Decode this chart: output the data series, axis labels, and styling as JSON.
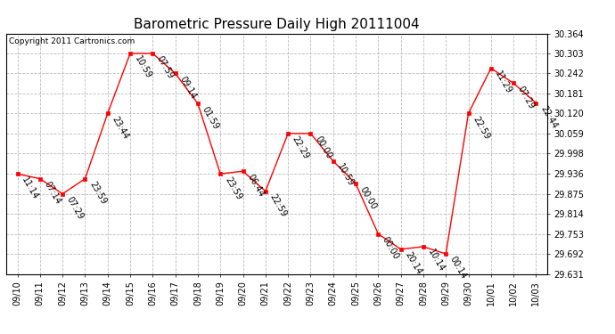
{
  "title": "Barometric Pressure Daily High 20111004",
  "copyright": "Copyright 2011 Cartronics.com",
  "x_labels": [
    "09/10",
    "09/11",
    "09/12",
    "09/13",
    "09/14",
    "09/15",
    "09/16",
    "09/17",
    "09/18",
    "09/19",
    "09/20",
    "09/21",
    "09/22",
    "09/23",
    "09/24",
    "09/25",
    "09/26",
    "09/27",
    "09/28",
    "09/29",
    "09/30",
    "10/01",
    "10/02",
    "10/03"
  ],
  "y_values": [
    29.936,
    29.921,
    29.875,
    29.921,
    30.12,
    30.303,
    30.303,
    30.242,
    30.15,
    29.936,
    29.944,
    29.883,
    30.059,
    30.059,
    29.975,
    29.906,
    29.753,
    29.706,
    29.714,
    29.692,
    30.12,
    30.258,
    30.212,
    30.152
  ],
  "point_labels": [
    "11:14",
    "07:14",
    "07:29",
    "23:59",
    "23:44",
    "10:59",
    "07:59",
    "09:14",
    "01:59",
    "23:59",
    "06:44",
    "22:59",
    "22:29",
    "00:00",
    "10:59",
    "00:00",
    "00:00",
    "20:14",
    "10:14",
    "00:14",
    "22:59",
    "11:29",
    "07:29",
    "22:44"
  ],
  "y_min": 29.631,
  "y_max": 30.364,
  "y_ticks": [
    29.631,
    29.692,
    29.753,
    29.814,
    29.875,
    29.936,
    29.998,
    30.059,
    30.12,
    30.181,
    30.242,
    30.303,
    30.364
  ],
  "line_color": "red",
  "marker_color": "red",
  "marker_face": "red",
  "bg_color": "white",
  "grid_color": "#bbbbbb",
  "title_fontsize": 11,
  "tick_fontsize": 7,
  "annot_fontsize": 7,
  "copyright_fontsize": 6.5
}
